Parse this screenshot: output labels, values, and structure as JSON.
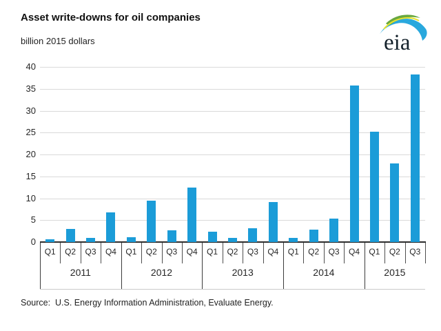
{
  "header": {
    "title": "Asset write-downs for oil companies",
    "subtitle": "billion 2015 dollars"
  },
  "logo": {
    "text": "eia",
    "text_color": "#14212b",
    "swoosh_blue": "#29a8dd",
    "leaf_green": "#69a83f",
    "streak_yellow": "#e8e22e"
  },
  "source_note": "Source:  U.S. Energy Information Administration, Evaluate Energy.",
  "chart_data": {
    "type": "bar",
    "title": "Asset write-downs for oil companies",
    "ylabel": "billion 2015 dollars",
    "ylim": [
      0,
      40
    ],
    "yticks": [
      0,
      5,
      10,
      15,
      20,
      25,
      30,
      35,
      40
    ],
    "grid": true,
    "bar_color": "#1b9cd8",
    "grid_color": "#d9d9d9",
    "groups": [
      {
        "year": "2011",
        "quarters": [
          "Q1",
          "Q2",
          "Q3",
          "Q4"
        ],
        "values": [
          0.7,
          3.0,
          1.0,
          6.8
        ]
      },
      {
        "year": "2012",
        "quarters": [
          "Q1",
          "Q2",
          "Q3",
          "Q4"
        ],
        "values": [
          1.1,
          9.4,
          2.6,
          12.5
        ]
      },
      {
        "year": "2013",
        "quarters": [
          "Q1",
          "Q2",
          "Q3",
          "Q4"
        ],
        "values": [
          2.3,
          1.0,
          3.2,
          9.1
        ]
      },
      {
        "year": "2014",
        "quarters": [
          "Q1",
          "Q2",
          "Q3",
          "Q4"
        ],
        "values": [
          0.9,
          2.8,
          5.4,
          35.8
        ]
      },
      {
        "year": "2015",
        "quarters": [
          "Q1",
          "Q2",
          "Q3"
        ],
        "values": [
          25.2,
          18.0,
          38.2
        ]
      }
    ]
  }
}
